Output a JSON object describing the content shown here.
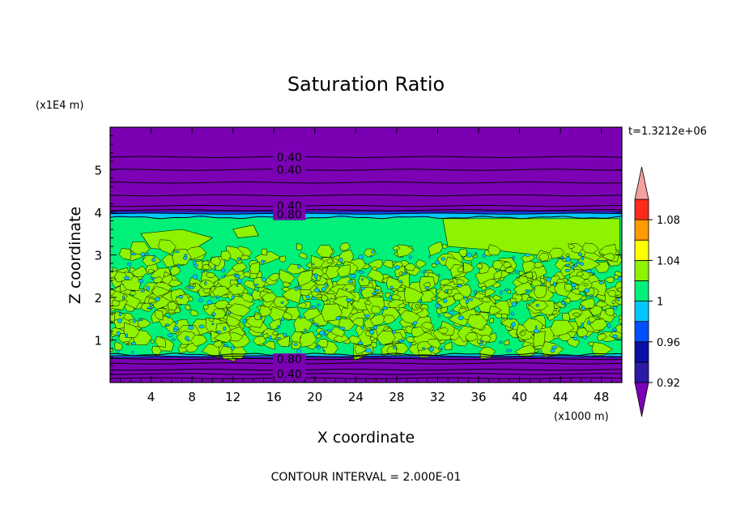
{
  "chart_data": {
    "type": "heatmap",
    "title": "Saturation Ratio",
    "xlabel": "X coordinate",
    "ylabel": "Z coordinate",
    "x_unit": "(x1000 m)",
    "y_unit": "(x1E4 m)",
    "time_label": "t=1.3212e+06",
    "footer": "CONTOUR INTERVAL = 2.000E-01",
    "xlim": [
      0,
      50
    ],
    "ylim": [
      0,
      6
    ],
    "x_ticks": [
      4,
      8,
      12,
      16,
      20,
      24,
      28,
      32,
      36,
      40,
      44,
      48
    ],
    "y_ticks": [
      1,
      2,
      3,
      4,
      5
    ],
    "x_tick_labels": [
      "4",
      "8",
      "12",
      "16",
      "20",
      "24",
      "28",
      "32",
      "36",
      "40",
      "44",
      "48"
    ],
    "y_tick_labels": [
      "1",
      "2",
      "3",
      "4",
      "5"
    ],
    "colorbar": {
      "levels": [
        0.92,
        0.94,
        0.96,
        0.98,
        1.0,
        1.02,
        1.04,
        1.06,
        1.08,
        1.1
      ],
      "tick_values": [
        0.92,
        0.96,
        1.0,
        1.04,
        1.08
      ],
      "tick_labels": [
        "0.92",
        "0.96",
        "1",
        "1.04",
        "1.08"
      ],
      "colors": [
        "#2a1aa5",
        "#0a10a8",
        "#0050ff",
        "#00c8ff",
        "#00f07a",
        "#8ef200",
        "#ffff00",
        "#ff9a00",
        "#ff2a1a",
        "#ffb0a8"
      ],
      "under_color": "#7b00b4",
      "over_color": "#f4a0a0"
    },
    "bands": [
      {
        "region": "upper dry layer",
        "z_range": [
          4.0,
          6.0
        ],
        "value": "below 0.92"
      },
      {
        "region": "cloud top",
        "z_range": [
          3.85,
          4.0
        ],
        "value": "0.94-0.98"
      },
      {
        "region": "cloud layer",
        "z_range": [
          0.65,
          3.85
        ],
        "value": "0.98-1.02"
      },
      {
        "region": "cloud base",
        "z_range": [
          0.6,
          0.65
        ],
        "value": "0.94-0.98"
      },
      {
        "region": "lower dry layer",
        "z_range": [
          0.0,
          0.6
        ],
        "value": "below 0.92"
      }
    ],
    "contour_labels": [
      {
        "text": "0.40",
        "x": 17.5,
        "z": 5.3
      },
      {
        "text": "0.40",
        "x": 17.5,
        "z": 5.0
      },
      {
        "text": "0.40",
        "x": 17.5,
        "z": 4.15
      },
      {
        "text": "0.80",
        "x": 17.5,
        "z": 3.95
      },
      {
        "text": "0.80",
        "x": 17.5,
        "z": 0.55
      },
      {
        "text": "0.40",
        "x": 17.5,
        "z": 0.2
      }
    ],
    "contour_levels_z": [
      5.3,
      5.0,
      4.7,
      4.4,
      4.15,
      4.05,
      3.97,
      0.62,
      0.55,
      0.45,
      0.3,
      0.2,
      0.1
    ]
  }
}
